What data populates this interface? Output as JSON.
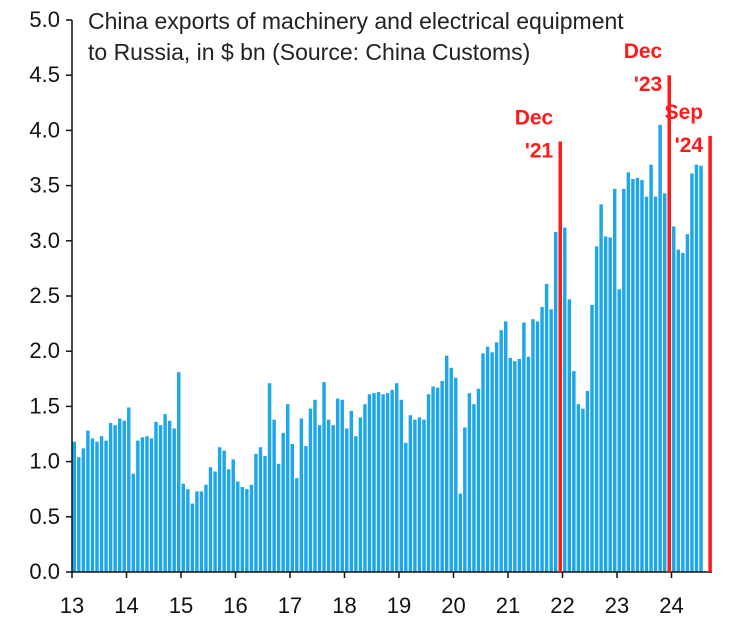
{
  "chart_data": {
    "type": "bar",
    "title_line1": "China exports of machinery and electrical equipment",
    "title_line2": "to Russia, in $ bn (Source: China Customs)",
    "xlabel": "",
    "ylabel": "",
    "ylim": [
      0,
      5
    ],
    "y_ticks": [
      "0.0",
      "0.5",
      "1.0",
      "1.5",
      "2.0",
      "2.5",
      "3.0",
      "3.5",
      "4.0",
      "4.5",
      "5.0"
    ],
    "x_tick_labels": [
      "13",
      "14",
      "15",
      "16",
      "17",
      "18",
      "19",
      "20",
      "21",
      "22",
      "23",
      "24"
    ],
    "start": "2013-01",
    "bar_color": "#1ea7e8",
    "annotation_color": "#ff1a1a",
    "grid": false,
    "legend": "none",
    "values": [
      1.18,
      1.04,
      1.12,
      1.28,
      1.21,
      1.18,
      1.23,
      1.19,
      1.35,
      1.33,
      1.39,
      1.37,
      1.49,
      0.89,
      1.19,
      1.22,
      1.23,
      1.21,
      1.36,
      1.33,
      1.43,
      1.37,
      1.3,
      1.81,
      0.8,
      0.75,
      0.62,
      0.73,
      0.73,
      0.79,
      0.95,
      0.91,
      1.13,
      1.1,
      0.93,
      1.02,
      0.82,
      0.77,
      0.75,
      0.79,
      1.07,
      1.13,
      1.05,
      1.71,
      1.38,
      0.98,
      1.26,
      1.52,
      1.16,
      0.85,
      1.39,
      1.14,
      1.48,
      1.56,
      1.33,
      1.72,
      1.38,
      1.33,
      1.57,
      1.56,
      1.3,
      1.46,
      1.23,
      1.4,
      1.52,
      1.61,
      1.62,
      1.63,
      1.61,
      1.62,
      1.65,
      1.71,
      1.56,
      1.17,
      1.42,
      1.38,
      1.4,
      1.38,
      1.61,
      1.68,
      1.67,
      1.73,
      1.96,
      1.85,
      1.76,
      0.71,
      1.31,
      1.62,
      1.52,
      1.66,
      1.98,
      2.04,
      1.99,
      2.08,
      2.19,
      2.27,
      1.94,
      1.91,
      1.93,
      2.26,
      1.95,
      2.29,
      2.27,
      2.4,
      2.61,
      2.38,
      3.08,
      2.85,
      3.12,
      2.47,
      1.82,
      1.52,
      1.48,
      1.64,
      2.42,
      2.95,
      3.33,
      3.04,
      3.03,
      3.47,
      2.56,
      3.47,
      3.62,
      3.56,
      3.57,
      3.55,
      3.4,
      3.69,
      3.4,
      4.05,
      3.43,
      3.55,
      3.13,
      2.92,
      2.89,
      3.06,
      3.61,
      3.69,
      3.68
    ],
    "annotations": [
      {
        "label_line1": "Dec",
        "label_line2": "'21",
        "month": "2021-12",
        "value": 3.9
      },
      {
        "label_line1": "Dec",
        "label_line2": "'23",
        "month": "2023-12",
        "value": 4.5
      },
      {
        "label_line1": "Sep",
        "label_line2": "'24",
        "month": "2024-09",
        "value": 3.95
      }
    ]
  }
}
